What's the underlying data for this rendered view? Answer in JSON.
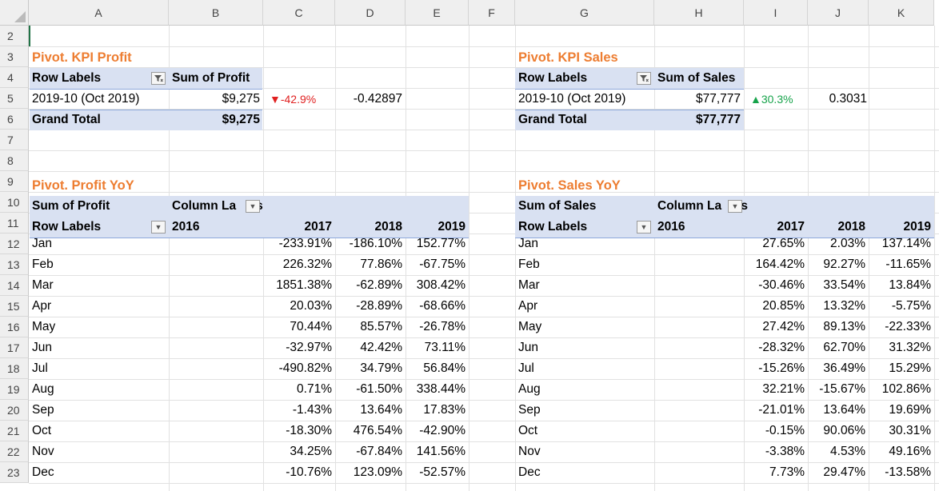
{
  "columns": [
    "A",
    "B",
    "C",
    "D",
    "E",
    "F",
    "G",
    "H",
    "I",
    "J",
    "K"
  ],
  "rows": [
    "2",
    "3",
    "4",
    "5",
    "6",
    "7",
    "8",
    "9",
    "10",
    "11",
    "12",
    "13",
    "14",
    "15",
    "16",
    "17",
    "18",
    "19",
    "20",
    "21",
    "22",
    "23"
  ],
  "kpi_profit": {
    "title": "Pivot. KPI Profit",
    "row_labels": "Row Labels",
    "sum_header": "Sum of Profit",
    "period": "2019-10 (Oct 2019)",
    "value": "$9,275",
    "indicator": "▼",
    "change": "-42.9%",
    "raw": "-0.42897",
    "grand_total_label": "Grand Total",
    "grand_total": "$9,275"
  },
  "kpi_sales": {
    "title": "Pivot. KPI Sales",
    "row_labels": "Row Labels",
    "sum_header": "Sum of Sales",
    "period": "2019-10 (Oct 2019)",
    "value": "$77,777",
    "indicator": "▲",
    "change": "30.3%",
    "raw": "0.3031",
    "grand_total_label": "Grand Total",
    "grand_total": "$77,777"
  },
  "profit_yoy": {
    "title": "Pivot. Profit YoY",
    "sum_label": "Sum of Profit",
    "column_labels": "Column La",
    "column_labels_tail": "s",
    "row_labels": "Row Labels",
    "years": [
      "2016",
      "2017",
      "2018",
      "2019"
    ],
    "rows": [
      {
        "month": "Jan",
        "v2017": "-233.91%",
        "v2018": "-186.10%",
        "v2019": "152.77%"
      },
      {
        "month": "Feb",
        "v2017": "226.32%",
        "v2018": "77.86%",
        "v2019": "-67.75%"
      },
      {
        "month": "Mar",
        "v2017": "1851.38%",
        "v2018": "-62.89%",
        "v2019": "308.42%"
      },
      {
        "month": "Apr",
        "v2017": "20.03%",
        "v2018": "-28.89%",
        "v2019": "-68.66%"
      },
      {
        "month": "May",
        "v2017": "70.44%",
        "v2018": "85.57%",
        "v2019": "-26.78%"
      },
      {
        "month": "Jun",
        "v2017": "-32.97%",
        "v2018": "42.42%",
        "v2019": "73.11%"
      },
      {
        "month": "Jul",
        "v2017": "-490.82%",
        "v2018": "34.79%",
        "v2019": "56.84%"
      },
      {
        "month": "Aug",
        "v2017": "0.71%",
        "v2018": "-61.50%",
        "v2019": "338.44%"
      },
      {
        "month": "Sep",
        "v2017": "-1.43%",
        "v2018": "13.64%",
        "v2019": "17.83%"
      },
      {
        "month": "Oct",
        "v2017": "-18.30%",
        "v2018": "476.54%",
        "v2019": "-42.90%"
      },
      {
        "month": "Nov",
        "v2017": "34.25%",
        "v2018": "-67.84%",
        "v2019": "141.56%"
      },
      {
        "month": "Dec",
        "v2017": "-10.76%",
        "v2018": "123.09%",
        "v2019": "-52.57%"
      }
    ]
  },
  "sales_yoy": {
    "title": "Pivot. Sales YoY",
    "sum_label": "Sum of Sales",
    "column_labels": "Column La",
    "column_labels_tail": "ls",
    "row_labels": "Row Labels",
    "years": [
      "2016",
      "2017",
      "2018",
      "2019"
    ],
    "rows": [
      {
        "month": "Jan",
        "v2017": "27.65%",
        "v2018": "2.03%",
        "v2019": "137.14%"
      },
      {
        "month": "Feb",
        "v2017": "164.42%",
        "v2018": "92.27%",
        "v2019": "-11.65%"
      },
      {
        "month": "Mar",
        "v2017": "-30.46%",
        "v2018": "33.54%",
        "v2019": "13.84%"
      },
      {
        "month": "Apr",
        "v2017": "20.85%",
        "v2018": "13.32%",
        "v2019": "-5.75%"
      },
      {
        "month": "May",
        "v2017": "27.42%",
        "v2018": "89.13%",
        "v2019": "-22.33%"
      },
      {
        "month": "Jun",
        "v2017": "-28.32%",
        "v2018": "62.70%",
        "v2019": "31.32%"
      },
      {
        "month": "Jul",
        "v2017": "-15.26%",
        "v2018": "36.49%",
        "v2019": "15.29%"
      },
      {
        "month": "Aug",
        "v2017": "32.21%",
        "v2018": "-15.67%",
        "v2019": "102.86%"
      },
      {
        "month": "Sep",
        "v2017": "-21.01%",
        "v2018": "13.64%",
        "v2019": "19.69%"
      },
      {
        "month": "Oct",
        "v2017": "-0.15%",
        "v2018": "90.06%",
        "v2019": "30.31%"
      },
      {
        "month": "Nov",
        "v2017": "-3.38%",
        "v2018": "4.53%",
        "v2019": "49.16%"
      },
      {
        "month": "Dec",
        "v2017": "7.73%",
        "v2018": "29.47%",
        "v2019": "-13.58%"
      }
    ]
  },
  "colors": {
    "title": "#ed7d31",
    "pivot_band": "#d9e1f2",
    "negative_indicator": "#e02020",
    "positive_indicator": "#16a34a"
  }
}
